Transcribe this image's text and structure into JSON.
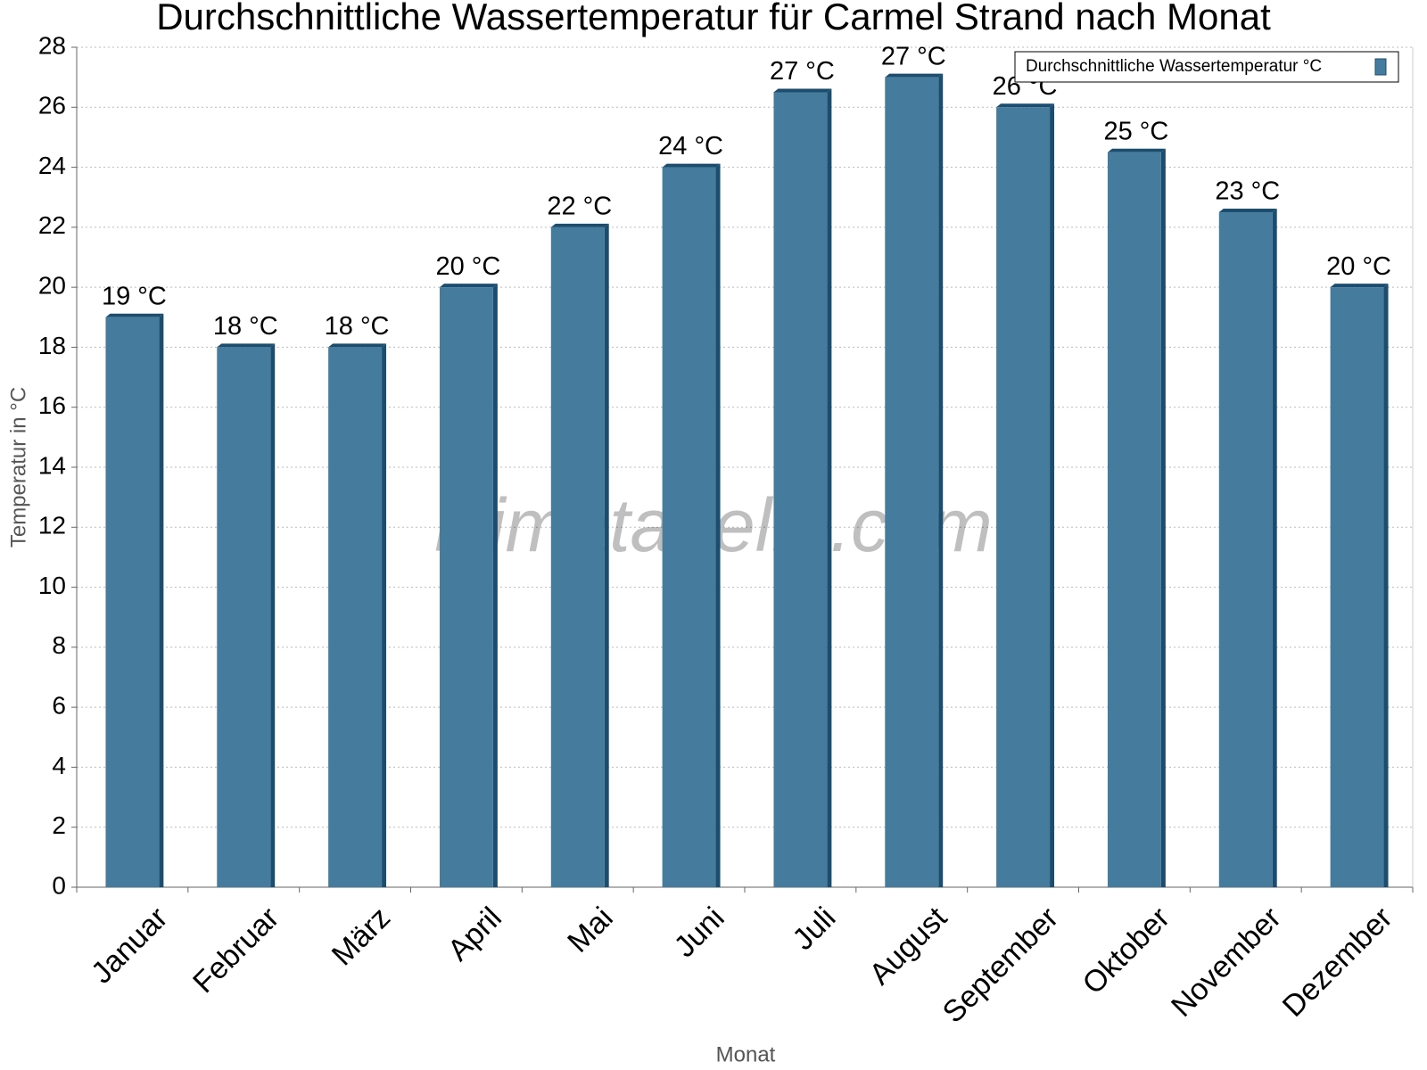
{
  "chart_data": {
    "type": "bar",
    "title": "Durchschnittliche Wassertemperatur für Carmel Strand nach Monat",
    "x_label": "Monat",
    "y_label": "Temperatur in °C",
    "watermark": "klimatabelle.com",
    "categories": [
      "Januar",
      "Februar",
      "März",
      "April",
      "Mai",
      "Juni",
      "Juli",
      "August",
      "September",
      "Oktober",
      "November",
      "Dezember"
    ],
    "series": [
      {
        "name": "Durchschnittliche Wassertemperatur °C",
        "color": "#457b9d",
        "values": [
          19,
          18,
          18,
          20,
          22,
          24,
          26.5,
          27,
          26,
          24.5,
          22.5,
          20
        ],
        "value_labels": [
          "19 °C",
          "18 °C",
          "18 °C",
          "20 °C",
          "22 °C",
          "24 °C",
          "27 °C",
          "27 °C",
          "26 °C",
          "25 °C",
          "23 °C",
          "20 °C"
        ]
      }
    ],
    "ylim": [
      0,
      28
    ],
    "yticks": [
      0,
      2,
      4,
      6,
      8,
      10,
      12,
      14,
      16,
      18,
      20,
      22,
      24,
      26,
      28
    ],
    "grid": true,
    "legend": "upper right"
  }
}
